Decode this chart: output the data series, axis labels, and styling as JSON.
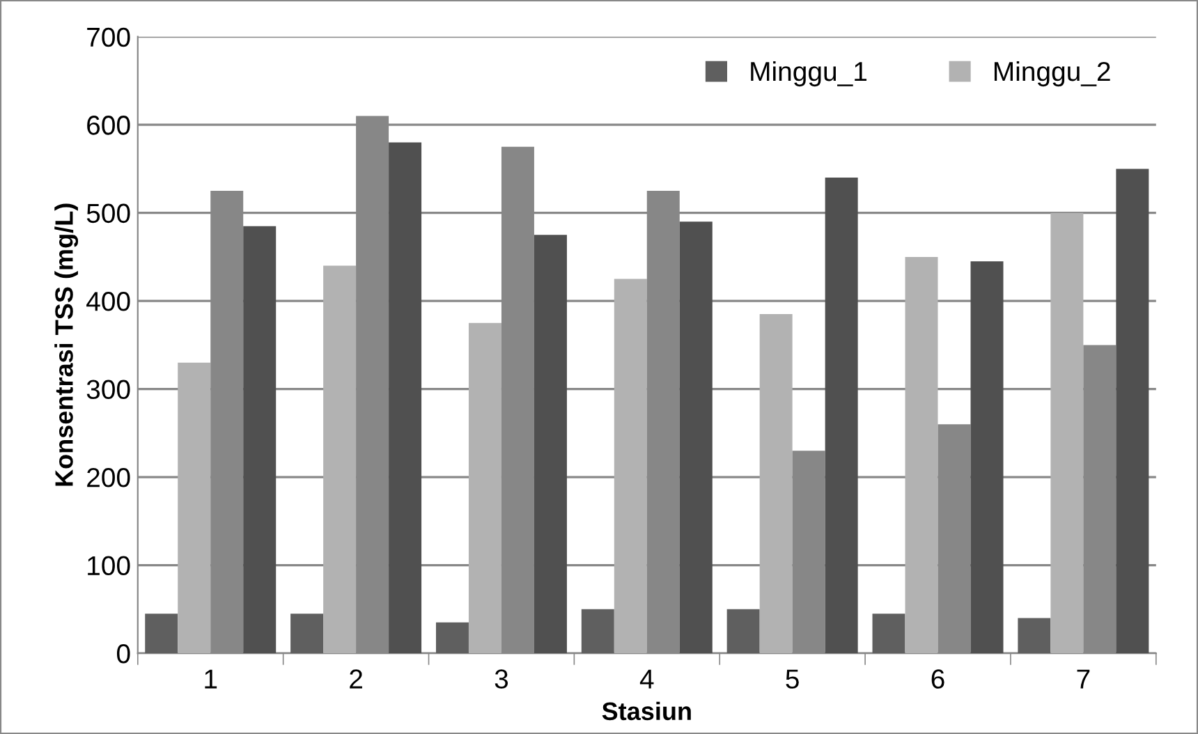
{
  "chart_data": {
    "type": "bar",
    "xlabel": "Stasiun",
    "ylabel": "Konsentrasi TSS (mg/L)",
    "categories": [
      "1",
      "2",
      "3",
      "4",
      "5",
      "6",
      "7"
    ],
    "series": [
      {
        "name": "Minggu_1",
        "color": "#5f5f5f",
        "values": [
          45,
          45,
          35,
          50,
          50,
          45,
          40
        ]
      },
      {
        "name": "Minggu_2",
        "color": "#b2b2b2",
        "values": [
          330,
          440,
          375,
          425,
          385,
          450,
          500
        ]
      },
      {
        "color": "#878787",
        "values": [
          525,
          610,
          575,
          525,
          230,
          260,
          350
        ]
      },
      {
        "color": "#505050",
        "values": [
          485,
          580,
          475,
          490,
          540,
          445,
          550
        ]
      }
    ],
    "ylim": [
      0,
      700
    ],
    "yticks": [
      0,
      100,
      200,
      300,
      400,
      500,
      600,
      700
    ],
    "grid": "y",
    "legend": "top right"
  }
}
